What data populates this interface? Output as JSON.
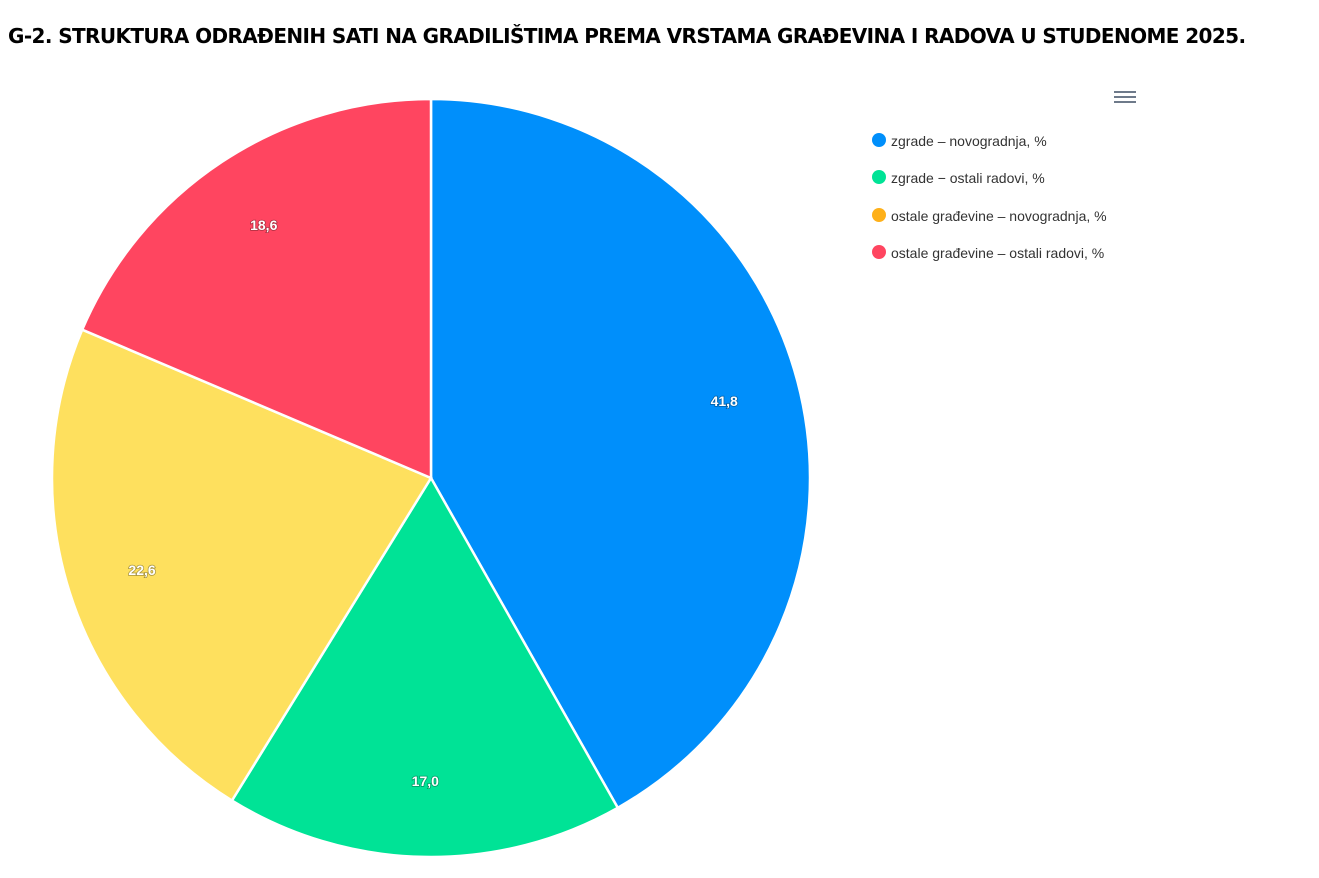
{
  "title": "G-2. STRUKTURA ODRAĐENIH SATI NA GRADILIŠTIMA PREMA VRSTAMA GRAĐEVINA I RADOVA U STUDENOME 2025.",
  "menu_icon": "hamburger-menu-icon",
  "chart_data": {
    "type": "pie",
    "title": "G-2. STRUKTURA ODRAĐENIH SATI NA GRADILIŠTIMA PREMA VRSTAMA GRAĐEVINA I RADOVA U STUDENOME 2025.",
    "legend_position": "top-right",
    "categories": [
      "zgrade – novogradnja, %",
      "zgrade − ostali radovi, %",
      "ostale građevine – novogradnja, %",
      "ostale građevine – ostali radovi, %"
    ],
    "values": [
      41.8,
      17.0,
      22.6,
      18.6
    ],
    "labels": [
      "41,8",
      "17,0",
      "22,6",
      "18,6"
    ],
    "slice_colors": [
      "#008FFB",
      "#00E396",
      "#FEE05E",
      "#FF4560"
    ],
    "legend_colors": [
      "#008FFB",
      "#00E396",
      "#FEB019",
      "#FF4560"
    ]
  }
}
